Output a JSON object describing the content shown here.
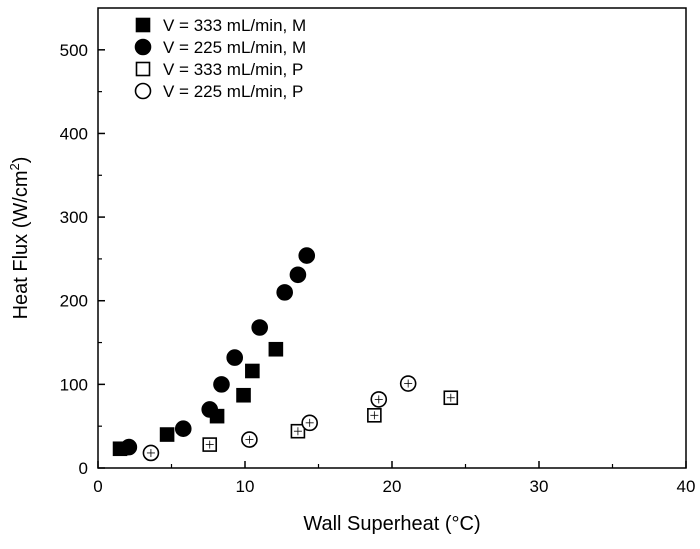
{
  "chart_data": {
    "type": "scatter",
    "xlabel": "Wall Superheat (°C)",
    "ylabel_main": "Heat Flux (W/cm",
    "ylabel_sup": "2",
    "ylabel_tail": ")",
    "xlim": [
      0,
      40
    ],
    "ylim": [
      0,
      550
    ],
    "xticks": [
      0,
      10,
      20,
      30,
      40
    ],
    "yticks": [
      0,
      100,
      200,
      300,
      400,
      500
    ],
    "grid": false,
    "legend_position": "top-left",
    "series": [
      {
        "name": "V = 333 mL/min, M",
        "marker": "square",
        "filled": true,
        "points": [
          [
            1.5,
            23
          ],
          [
            4.7,
            40
          ],
          [
            8.1,
            62
          ],
          [
            9.9,
            87
          ],
          [
            10.5,
            116
          ],
          [
            12.1,
            142
          ]
        ]
      },
      {
        "name": "V = 225 mL/min, M",
        "marker": "circle",
        "filled": true,
        "points": [
          [
            2.1,
            25
          ],
          [
            5.8,
            47
          ],
          [
            7.6,
            70
          ],
          [
            8.4,
            100
          ],
          [
            9.3,
            132
          ],
          [
            11.0,
            168
          ],
          [
            12.7,
            210
          ],
          [
            13.6,
            231
          ],
          [
            14.2,
            254
          ]
        ]
      },
      {
        "name": "V = 333 mL/min, P",
        "marker": "square",
        "filled": false,
        "points": [
          [
            7.6,
            28
          ],
          [
            13.6,
            44
          ],
          [
            18.8,
            63
          ],
          [
            24.0,
            84
          ]
        ]
      },
      {
        "name": "V = 225 mL/min, P",
        "marker": "circle",
        "filled": false,
        "points": [
          [
            3.6,
            18
          ],
          [
            10.3,
            34
          ],
          [
            14.4,
            54
          ],
          [
            19.1,
            82
          ],
          [
            21.1,
            101
          ]
        ]
      }
    ]
  }
}
